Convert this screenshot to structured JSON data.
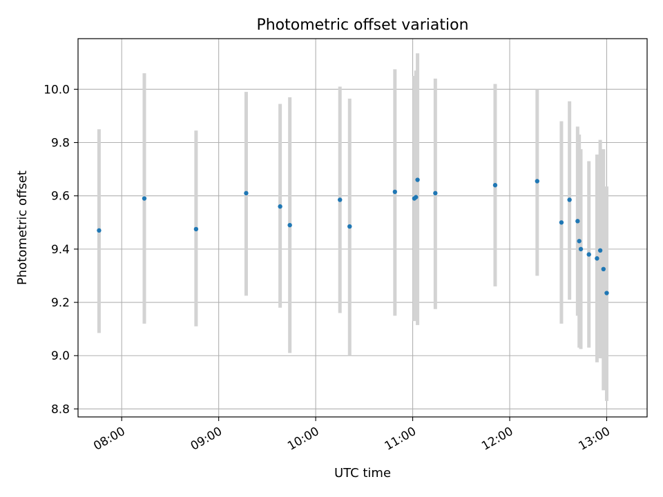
{
  "chart_data": {
    "type": "scatter",
    "title": "Photometric offset variation",
    "xlabel": "UTC time",
    "ylabel": "Photometric offset",
    "x_format": "HH:MM",
    "xlim": [
      "07:33",
      "13:25"
    ],
    "ylim": [
      8.77,
      10.19
    ],
    "x_ticks": [
      "08:00",
      "09:00",
      "10:00",
      "11:00",
      "12:00",
      "13:00"
    ],
    "y_ticks": [
      8.8,
      9.0,
      9.2,
      9.4,
      9.6,
      9.8,
      10.0
    ],
    "grid": true,
    "colors": {
      "marker": "#1f77b4",
      "errorbar": "#d3d3d3",
      "grid": "#b0b0b0"
    },
    "series": [
      {
        "points": [
          {
            "x": "07:46",
            "y": 9.47,
            "yerr": [
              9.085,
              9.85
            ]
          },
          {
            "x": "08:14",
            "y": 9.59,
            "yerr": [
              9.12,
              10.06
            ]
          },
          {
            "x": "08:46",
            "y": 9.475,
            "yerr": [
              9.11,
              9.845
            ]
          },
          {
            "x": "09:17",
            "y": 9.61,
            "yerr": [
              9.225,
              9.99
            ]
          },
          {
            "x": "09:38",
            "y": 9.56,
            "yerr": [
              9.18,
              9.945
            ]
          },
          {
            "x": "09:44",
            "y": 9.49,
            "yerr": [
              9.01,
              9.97
            ]
          },
          {
            "x": "10:15",
            "y": 9.585,
            "yerr": [
              9.16,
              10.01
            ]
          },
          {
            "x": "10:21",
            "y": 9.485,
            "yerr": [
              9.0,
              9.965
            ]
          },
          {
            "x": "10:49",
            "y": 9.615,
            "yerr": [
              9.15,
              10.075
            ]
          },
          {
            "x": "11:01",
            "y": 9.59,
            "yerr": [
              9.13,
              10.05
            ]
          },
          {
            "x": "11:02",
            "y": 9.595,
            "yerr": [
              9.14,
              10.07
            ]
          },
          {
            "x": "11:03",
            "y": 9.66,
            "yerr": [
              9.115,
              10.135
            ]
          },
          {
            "x": "11:14",
            "y": 9.61,
            "yerr": [
              9.175,
              10.04
            ]
          },
          {
            "x": "11:51",
            "y": 9.64,
            "yerr": [
              9.26,
              10.02
            ]
          },
          {
            "x": "12:17",
            "y": 9.655,
            "yerr": [
              9.3,
              10.0
            ]
          },
          {
            "x": "12:32",
            "y": 9.5,
            "yerr": [
              9.12,
              9.88
            ]
          },
          {
            "x": "12:37",
            "y": 9.585,
            "yerr": [
              9.21,
              9.955
            ]
          },
          {
            "x": "12:42",
            "y": 9.505,
            "yerr": [
              9.15,
              9.86
            ]
          },
          {
            "x": "12:43",
            "y": 9.43,
            "yerr": [
              9.03,
              9.83
            ]
          },
          {
            "x": "12:44",
            "y": 9.4,
            "yerr": [
              9.025,
              9.775
            ]
          },
          {
            "x": "12:49",
            "y": 9.38,
            "yerr": [
              9.03,
              9.73
            ]
          },
          {
            "x": "12:54",
            "y": 9.365,
            "yerr": [
              8.975,
              9.755
            ]
          },
          {
            "x": "12:56",
            "y": 9.395,
            "yerr": [
              8.99,
              9.81
            ]
          },
          {
            "x": "12:58",
            "y": 9.325,
            "yerr": [
              8.87,
              9.775
            ]
          },
          {
            "x": "13:00",
            "y": 9.235,
            "yerr": [
              8.83,
              9.635
            ]
          }
        ]
      }
    ]
  }
}
